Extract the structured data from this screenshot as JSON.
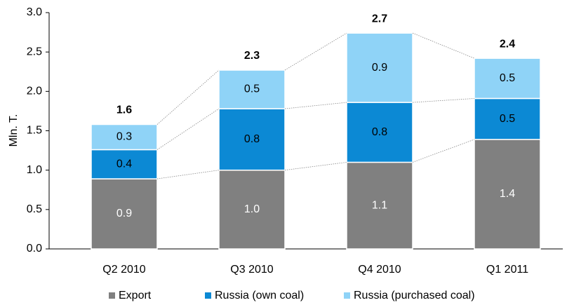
{
  "chart_data": {
    "type": "stacked_bar",
    "y_label": "Mln. T.",
    "categories": [
      "Q2 2010",
      "Q3 2010",
      "Q4 2010",
      "Q1 2011"
    ],
    "series": [
      {
        "name": "Export",
        "color": "#808080",
        "label_color": "#ffffff",
        "values": [
          0.89,
          1.0,
          1.1,
          1.39
        ],
        "value_labels": [
          "0.9",
          "1.0",
          "1.1",
          "1.4"
        ]
      },
      {
        "name": "Russia (own coal)",
        "color": "#0c89d4",
        "label_color": "#000000",
        "values": [
          0.37,
          0.78,
          0.76,
          0.52
        ],
        "value_labels": [
          "0.4",
          "0.8",
          "0.8",
          "0.5"
        ]
      },
      {
        "name": "Russia (purchased coal)",
        "color": "#8fd3f7",
        "label_color": "#000000",
        "values": [
          0.32,
          0.49,
          0.88,
          0.51
        ],
        "value_labels": [
          "0.3",
          "0.5",
          "0.9",
          "0.5"
        ]
      }
    ],
    "totals": [
      1.58,
      2.27,
      2.74,
      2.42
    ],
    "total_labels": [
      "1.6",
      "2.3",
      "2.7",
      "2.4"
    ],
    "ylim": [
      0,
      3.0
    ],
    "yticks": [
      {
        "value": 0,
        "label": "0.0"
      },
      {
        "value": 0.5,
        "label": "0.5"
      },
      {
        "value": 1.0,
        "label": "1.0"
      },
      {
        "value": 1.5,
        "label": "1.5"
      },
      {
        "value": 2.0,
        "label": "2.0"
      },
      {
        "value": 2.5,
        "label": "2.5"
      },
      {
        "value": 3.0,
        "label": "3.0"
      }
    ],
    "connectors": true,
    "legend": "bottom"
  }
}
